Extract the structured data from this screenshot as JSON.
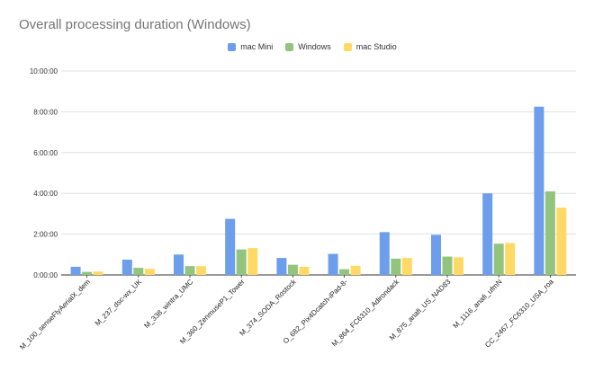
{
  "chart_data": {
    "type": "bar",
    "title": "Overall processing duration (Windows)",
    "xlabel": "",
    "ylabel": "",
    "y_unit": "seconds (displayed as H:MM:SS)",
    "ylim": [
      0,
      36000
    ],
    "y_ticks": [
      0,
      7200,
      14400,
      21600,
      28800,
      36000
    ],
    "y_tick_labels": [
      "0:00:00",
      "2:00:00",
      "4:00:00",
      "6:00:00",
      "8:00:00",
      "10:00:00"
    ],
    "grid": true,
    "legend_position": "top-center",
    "categories": [
      "M_100_senseFlyAerialX_dem",
      "M_237_dsc-wx_UK",
      "M_338_wintra_UMC",
      "M_360_ZenmuseP1_Tower",
      "M_374_SODA_Rostock",
      "O_682_Pix4Dcatch-iPad-8-",
      "M_864_FC6310_Adirondack",
      "M_875_anafi_US_NAD83",
      "M_1116_anafi_ufmN",
      "CC_2467_FC6310_USA_roa"
    ],
    "series": [
      {
        "name": "mac Mini",
        "color": "#6d9eeb",
        "values": [
          1440,
          2700,
          3600,
          9900,
          3000,
          3720,
          7560,
          7080,
          14400,
          29700
        ]
      },
      {
        "name": "Windows",
        "color": "#93c47d",
        "values": [
          540,
          1260,
          1560,
          4500,
          1800,
          1020,
          2880,
          3240,
          5520,
          14760
        ]
      },
      {
        "name": "mac Studio",
        "color": "#ffd966",
        "values": [
          600,
          1080,
          1560,
          4740,
          1440,
          1620,
          3000,
          3120,
          5640,
          11880
        ]
      }
    ]
  }
}
